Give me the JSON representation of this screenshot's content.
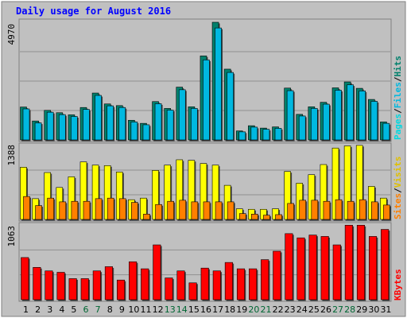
{
  "chart_data": [
    {
      "type": "bar",
      "panel": "hits-files-pages",
      "title": "Daily usage for August 2016",
      "y_axis_label_printed": "4970",
      "ylim": [
        0,
        4970
      ],
      "grid": true,
      "legend_placement": "right (vertical)",
      "categories": [
        "1",
        "2",
        "3",
        "4",
        "5",
        "6",
        "7",
        "8",
        "9",
        "10",
        "11",
        "12",
        "13",
        "14",
        "15",
        "16",
        "17",
        "18",
        "19",
        "20",
        "21",
        "22",
        "23",
        "24",
        "25",
        "26",
        "27",
        "28",
        "29",
        "30",
        "31"
      ],
      "series": [
        {
          "name": "Hits",
          "values": [
            1390,
            800,
            1250,
            1150,
            1060,
            1370,
            1980,
            1520,
            1450,
            830,
            700,
            1620,
            1330,
            2230,
            1400,
            3550,
            4970,
            2990,
            380,
            600,
            500,
            550,
            2190,
            1080,
            1400,
            1590,
            2200,
            2450,
            2180,
            1710,
            760
          ]
        },
        {
          "name": "Files",
          "values": [
            1310,
            720,
            1170,
            1070,
            990,
            1290,
            1880,
            1440,
            1370,
            760,
            640,
            1530,
            1260,
            2120,
            1330,
            3380,
            4730,
            2850,
            340,
            540,
            450,
            490,
            2080,
            1010,
            1330,
            1510,
            2100,
            2330,
            2070,
            1630,
            700
          ]
        },
        {
          "name": "Pages",
          "values": [
            0,
            0,
            0,
            0,
            0,
            0,
            0,
            0,
            0,
            0,
            0,
            0,
            0,
            0,
            0,
            0,
            0,
            0,
            0,
            0,
            0,
            0,
            0,
            0,
            0,
            0,
            0,
            0,
            0,
            0,
            0
          ]
        }
      ]
    },
    {
      "type": "bar",
      "panel": "visits-sites",
      "y_axis_label_printed": "1388",
      "ylim": [
        0,
        1388
      ],
      "grid": true,
      "legend_placement": "right (vertical)",
      "categories": [
        "1",
        "2",
        "3",
        "4",
        "5",
        "6",
        "7",
        "8",
        "9",
        "10",
        "11",
        "12",
        "13",
        "14",
        "15",
        "16",
        "17",
        "18",
        "19",
        "20",
        "21",
        "22",
        "23",
        "24",
        "25",
        "26",
        "27",
        "28",
        "29",
        "30",
        "31"
      ],
      "series": [
        {
          "name": "Visits",
          "values": [
            980,
            390,
            880,
            600,
            800,
            1080,
            1020,
            1010,
            890,
            370,
            400,
            920,
            1020,
            1120,
            1110,
            1050,
            1020,
            640,
            200,
            190,
            190,
            200,
            900,
            680,
            840,
            1030,
            1340,
            1380,
            1390,
            620,
            400
          ]
        },
        {
          "name": "Sites",
          "values": [
            430,
            260,
            400,
            330,
            340,
            340,
            390,
            400,
            390,
            320,
            100,
            280,
            340,
            360,
            330,
            330,
            330,
            330,
            110,
            100,
            80,
            90,
            300,
            360,
            360,
            340,
            370,
            340,
            370,
            330,
            270
          ]
        }
      ]
    },
    {
      "type": "bar",
      "panel": "kbytes",
      "y_axis_label_printed": "1063",
      "ylim": [
        0,
        1063
      ],
      "grid": true,
      "legend_placement": "right (vertical)",
      "categories": [
        "1",
        "2",
        "3",
        "4",
        "5",
        "6",
        "7",
        "8",
        "9",
        "10",
        "11",
        "12",
        "13",
        "14",
        "15",
        "16",
        "17",
        "18",
        "19",
        "20",
        "21",
        "22",
        "23",
        "24",
        "25",
        "26",
        "27",
        "28",
        "29",
        "30",
        "31"
      ],
      "series": [
        {
          "name": "KBytes",
          "values": [
            600,
            460,
            410,
            390,
            300,
            300,
            410,
            470,
            280,
            540,
            440,
            780,
            310,
            410,
            240,
            450,
            410,
            530,
            440,
            440,
            570,
            690,
            940,
            880,
            920,
            900,
            780,
            1060,
            1060,
            900,
            1000
          ]
        }
      ]
    }
  ],
  "colors": {
    "background": "#c0c0c0",
    "frame": "#ffffff",
    "title": "#0000ff",
    "axis_text": "#000000",
    "day_normal": "#000000",
    "day_weekend": "#006633",
    "hits": "#00806c",
    "files": "#00b8e0",
    "pages": "#00d8e0",
    "visits": "#ffff00",
    "sites": "#ff8000",
    "kbytes": "#ff0000"
  },
  "legends": {
    "hits": "Hits",
    "files": "Files",
    "pages": "Pages",
    "visits": "Visits",
    "sites": "Sites",
    "kbytes": "KBytes",
    "sep": "/"
  }
}
